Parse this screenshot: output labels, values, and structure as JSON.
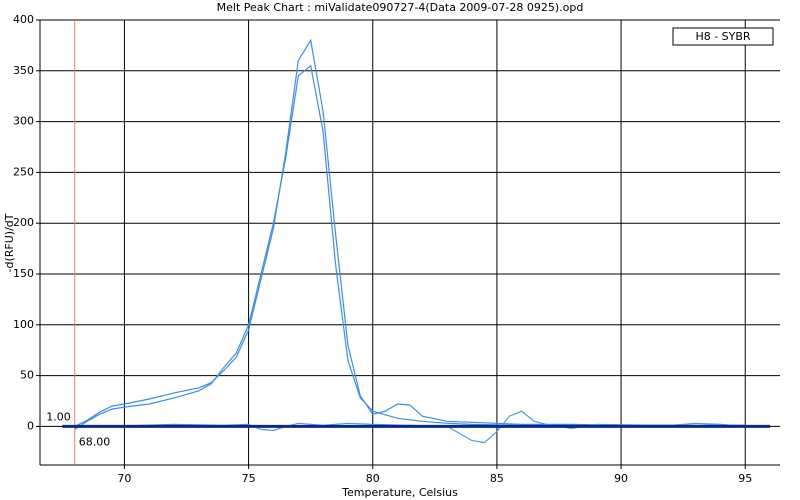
{
  "chart_data": {
    "type": "line",
    "title": "Melt Peak Chart : miValidate090727-4(Data 2009-07-28 0925).opd",
    "x_label": "Temperature, Celsius",
    "y_label": "-d(RFU)/dT",
    "xlim": [
      66.6,
      96.4
    ],
    "ylim": [
      -38,
      400
    ],
    "xticks": [
      70,
      75,
      80,
      85,
      90,
      95
    ],
    "yticks": [
      0,
      50,
      100,
      150,
      200,
      250,
      300,
      350,
      400
    ],
    "grid": true,
    "legend": "top-right",
    "marker": {
      "x": {
        "value": 68,
        "label": "68.00"
      },
      "y": {
        "value": 1,
        "label": "1.00"
      },
      "color": "#e08060"
    },
    "series": [
      {
        "name": "H8 - SYBR",
        "color": "#3a8ee6",
        "x": [
          68,
          68.5,
          69,
          69.5,
          70,
          71,
          72,
          73,
          73.5,
          74,
          74.5,
          75,
          75.5,
          76,
          76.5,
          77,
          77.5,
          78,
          78.5,
          79,
          79.5,
          80,
          80.5,
          81,
          81.5,
          82,
          83,
          84,
          85,
          86,
          88,
          90,
          92,
          95
        ],
        "values": [
          0,
          6,
          14,
          20,
          22,
          27,
          33,
          38,
          43,
          55,
          68,
          95,
          145,
          195,
          270,
          360,
          380,
          310,
          190,
          80,
          30,
          12,
          15,
          22,
          21,
          10,
          5,
          4,
          3,
          2,
          2,
          1,
          1,
          1
        ]
      },
      {
        "color": "#3a8ee6",
        "x": [
          68,
          68.5,
          69,
          69.5,
          70,
          71,
          72,
          73,
          73.5,
          74,
          74.5,
          75,
          75.5,
          76,
          76.5,
          77,
          77.5,
          78,
          78.5,
          79,
          79.5,
          80,
          81,
          82,
          83,
          84,
          86,
          90,
          95
        ],
        "values": [
          -3,
          5,
          12,
          17,
          19,
          22,
          28,
          35,
          42,
          58,
          72,
          100,
          150,
          200,
          265,
          345,
          355,
          290,
          160,
          65,
          28,
          15,
          8,
          5,
          3,
          2,
          1,
          1,
          1
        ]
      },
      {
        "color": "#4a9ae8",
        "x": [
          68,
          69,
          72,
          74,
          75,
          75.5,
          76,
          76.5,
          77,
          78,
          79,
          80,
          83,
          84,
          84.5,
          85,
          85.5,
          86,
          86.5,
          87,
          88,
          89,
          92,
          93,
          94,
          95
        ],
        "values": [
          0,
          0,
          2,
          1,
          2,
          -3,
          -4,
          0,
          3,
          1,
          3,
          2,
          0,
          -14,
          -16,
          -5,
          10,
          15,
          5,
          2,
          -2,
          2,
          1,
          3,
          2,
          0
        ]
      },
      {
        "color": "#0a2a8a",
        "x": [
          67.5,
          96
        ],
        "values": [
          0,
          0
        ]
      }
    ]
  }
}
